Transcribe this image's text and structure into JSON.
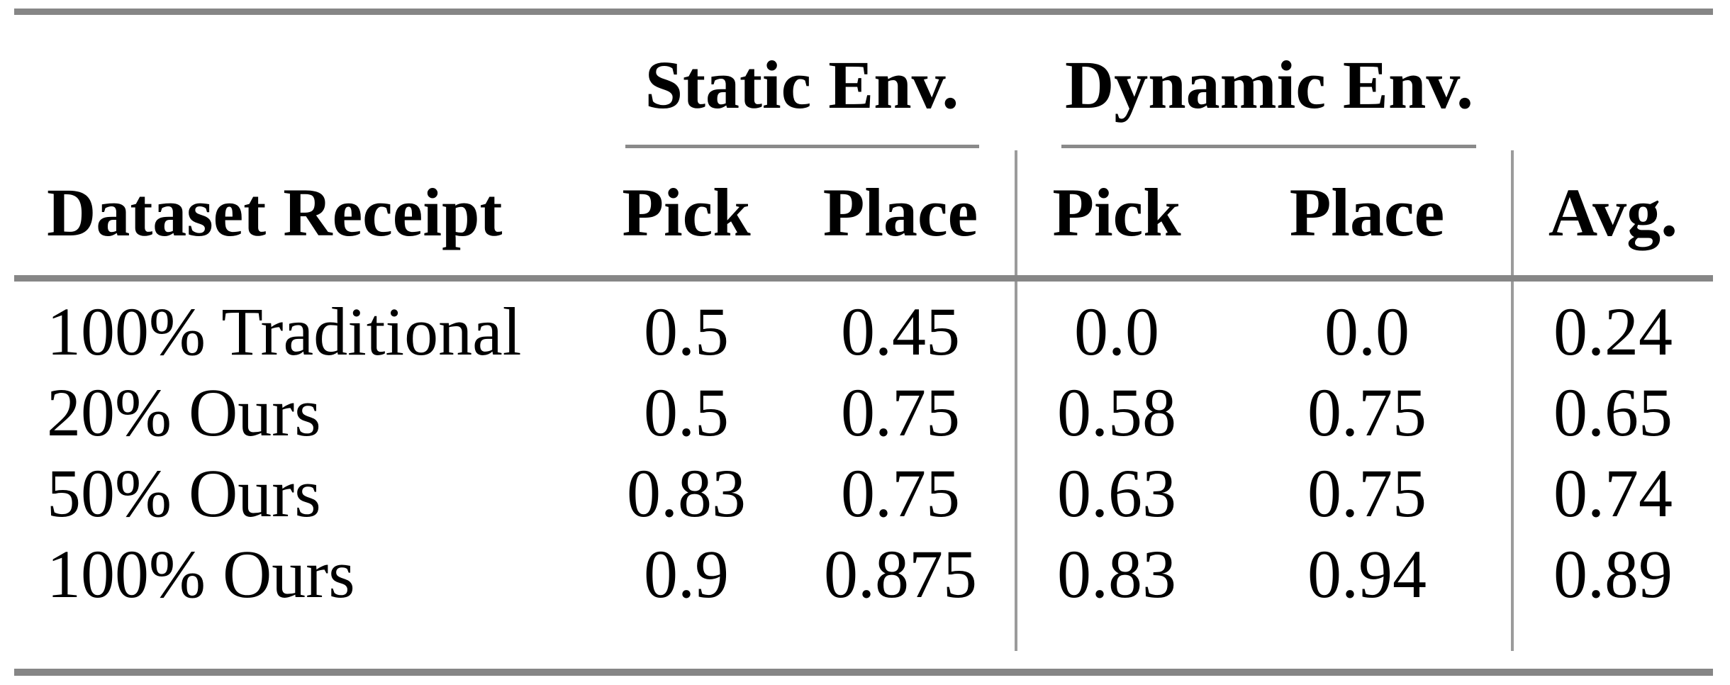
{
  "table": {
    "group_headers": {
      "static": "Static Env.",
      "dynamic": "Dynamic Env."
    },
    "header": {
      "row_label": "Dataset Receipt",
      "static_pick": "Pick",
      "static_place": "Place",
      "dynamic_pick": "Pick",
      "dynamic_place": "Place",
      "avg": "Avg."
    },
    "rows": [
      {
        "label": "100% Traditional",
        "values": [
          "0.5",
          "0.45",
          "0.0",
          "0.0",
          "0.24"
        ]
      },
      {
        "label": "20% Ours",
        "values": [
          "0.5",
          "0.75",
          "0.58",
          "0.75",
          "0.65"
        ]
      },
      {
        "label": "50% Ours",
        "values": [
          "0.83",
          "0.75",
          "0.63",
          "0.75",
          "0.74"
        ]
      },
      {
        "label": "100% Ours",
        "values": [
          "0.9",
          "0.875",
          "0.83",
          "0.94",
          "0.89"
        ]
      }
    ],
    "colors": {
      "rule_gray": "#868686",
      "divider_gray": "#9b9b9b",
      "text": "#000000",
      "background": "#ffffff"
    }
  }
}
